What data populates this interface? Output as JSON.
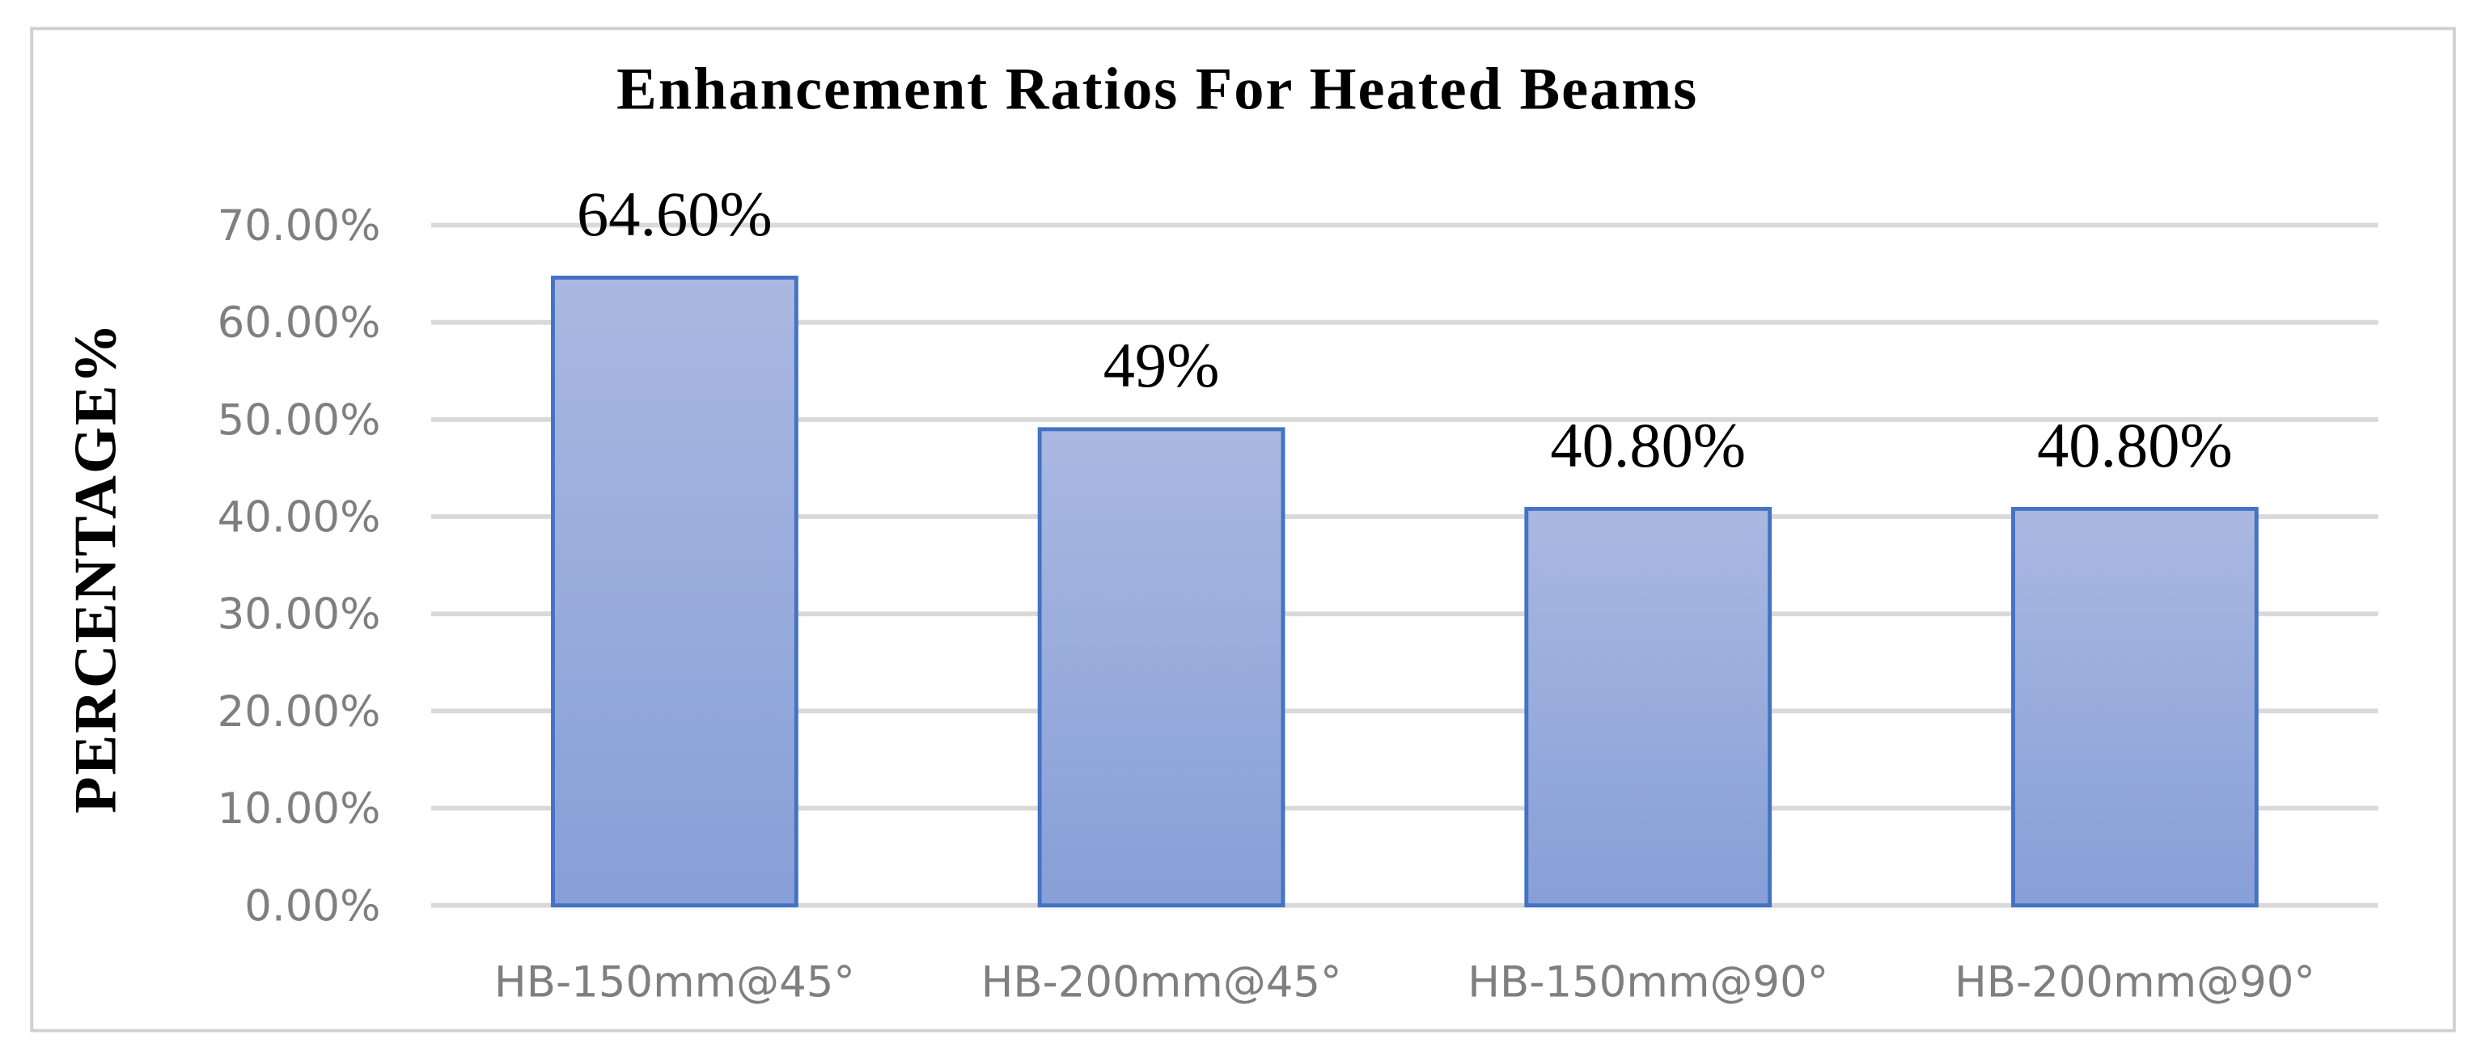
{
  "chart_data": {
    "type": "bar",
    "title": "Enhancement Ratios For Heated Beams",
    "y_label": "PERCENTAGE%",
    "categories": [
      "HB-150mm@45°",
      "HB-200mm@45°",
      "HB-150mm@90°",
      "HB-200mm@90°"
    ],
    "values": [
      64.6,
      49,
      40.8,
      40.8
    ],
    "value_labels": [
      "64.60%",
      "49%",
      "40.80%",
      "40.80%"
    ],
    "color": "#4472c4",
    "ylim": [
      0,
      70
    ],
    "yticks": [
      {
        "value": 0,
        "label": "0.00%"
      },
      {
        "value": 10,
        "label": "10.00%"
      },
      {
        "value": 20,
        "label": "20.00%"
      },
      {
        "value": 30,
        "label": "30.00%"
      },
      {
        "value": 40,
        "label": "40.00%"
      },
      {
        "value": 50,
        "label": "50.00%"
      },
      {
        "value": 60,
        "label": "60.00%"
      },
      {
        "value": 70,
        "label": "70.00%"
      }
    ],
    "grid": true
  }
}
